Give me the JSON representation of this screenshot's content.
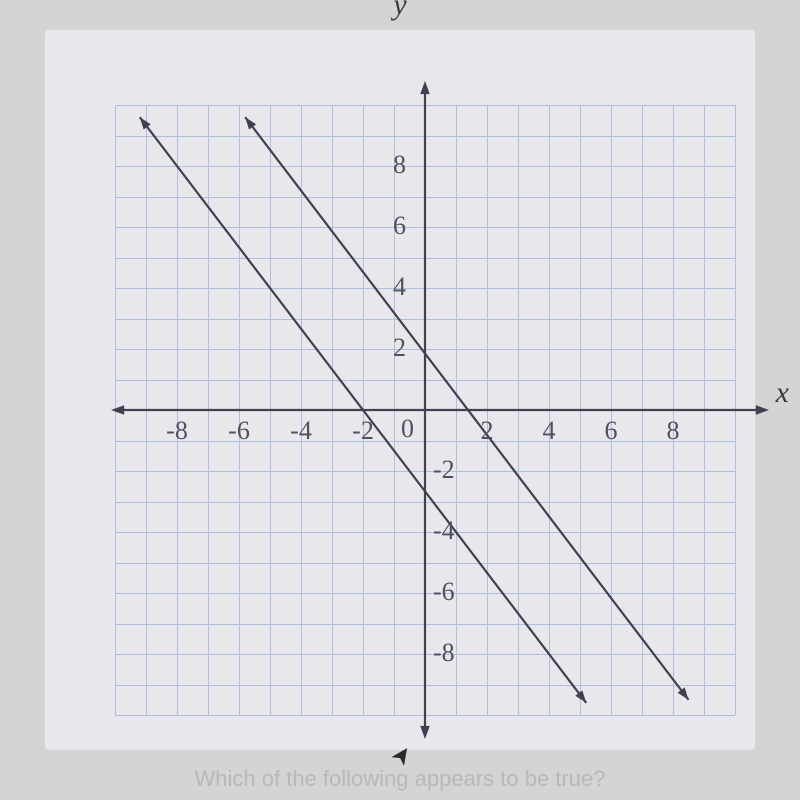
{
  "chart": {
    "type": "line",
    "background_color": "#e8e8ec",
    "grid_color": "#b0bde0",
    "axis_color": "#404050",
    "axis_width": 2.2,
    "line_color": "#404050",
    "line_width": 2.2,
    "xlim": [
      -10,
      10
    ],
    "ylim": [
      -10,
      10
    ],
    "grid_step": 1,
    "x_ticks": [
      -8,
      -6,
      -4,
      -2,
      0,
      2,
      4,
      6,
      8
    ],
    "y_ticks_pos": [
      2,
      4,
      6,
      8
    ],
    "y_ticks_neg": [
      -2,
      -4,
      -6,
      -8
    ],
    "origin_label": "0",
    "x_axis_label": "x",
    "y_axis_label": "y",
    "tick_fontsize": 26,
    "axis_label_fontsize": 30,
    "arrow_size": 10,
    "lines": [
      {
        "points": [
          [
            -9.2,
            9.6
          ],
          [
            5.2,
            -9.6
          ]
        ],
        "slope": -1.333
      },
      {
        "points": [
          [
            -5.8,
            9.6
          ],
          [
            8.5,
            -9.5
          ]
        ],
        "slope": -1.333
      }
    ]
  },
  "footer_text": "Which of the following appears to be true?",
  "cursor_glyph": "➤"
}
